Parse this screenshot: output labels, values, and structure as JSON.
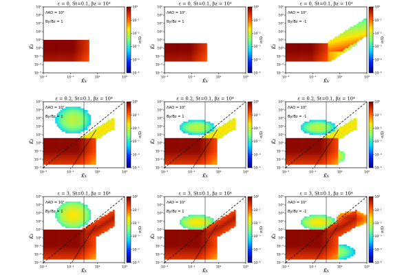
{
  "chart_data": {
    "type": "heatmap",
    "grid": "3x3",
    "xlabel": "K̃x",
    "ylabel": "K̃z",
    "colorbar_label": "σ/Ω",
    "x_ticks": [
      "10⁻³",
      "10⁻¹",
      "10¹",
      "10³"
    ],
    "y_ticks": [
      "10⁵",
      "10⁴",
      "10³",
      "10²",
      "10¹",
      "10⁰",
      "10⁻¹",
      "10⁻²",
      "10⁻³"
    ],
    "colorbar_ticks": [
      "10⁰",
      "10⁻¹",
      "10⁻²",
      "10⁻³",
      "10⁻⁴",
      "10⁻⁵"
    ],
    "xlim": [
      0.001,
      1000
    ],
    "ylim": [
      0.001,
      100000
    ],
    "clim": [
      1e-05,
      1
    ],
    "colormap": [
      "#00007f",
      "#0028ff",
      "#00d4ff",
      "#7dff7a",
      "#ffe600",
      "#ff4800",
      "#7f0000"
    ],
    "panels": [
      {
        "row": 0,
        "col": 0,
        "title": "ε = 0, St=0.1, βz = 10⁴",
        "ann1": "ΛAD = 10⁴",
        "ann2": "By/Bz = 1",
        "eps": 0,
        "lam": 4,
        "sgn": 1
      },
      {
        "row": 0,
        "col": 1,
        "title": "ε = 0, St=0.1, βz = 10⁴",
        "ann1": "ΛAD = 10²",
        "ann2": "By/Bz = 1",
        "eps": 0,
        "lam": 2,
        "sgn": 1
      },
      {
        "row": 0,
        "col": 2,
        "title": "ε = 0, St=0.1, βz = 10⁴",
        "ann1": "ΛAD = 10²",
        "ann2": "By/Bz = -1",
        "eps": 0,
        "lam": 2,
        "sgn": -1
      },
      {
        "row": 1,
        "col": 0,
        "title": "ε = 0.2, St=0.1, βz = 10⁴",
        "ann1": "ΛAD = 10⁴",
        "ann2": "By/Bz = 1",
        "eps": 0.2,
        "lam": 4,
        "sgn": 1
      },
      {
        "row": 1,
        "col": 1,
        "title": "ε = 0.2, St=0.1, βz = 10⁴",
        "ann1": "ΛAD = 10²",
        "ann2": "By/Bz = 1",
        "eps": 0.2,
        "lam": 2,
        "sgn": 1
      },
      {
        "row": 1,
        "col": 2,
        "title": "ε = 0.2, St=0.1, βz = 10⁴",
        "ann1": "ΛAD = 10²",
        "ann2": "By/Bz = -1",
        "eps": 0.2,
        "lam": 2,
        "sgn": -1
      },
      {
        "row": 2,
        "col": 0,
        "title": "ε = 3, St=0.1, βz = 10⁴",
        "ann1": "ΛAD = 10⁴",
        "ann2": "By/Bz = 1",
        "eps": 3,
        "lam": 4,
        "sgn": 1
      },
      {
        "row": 2,
        "col": 1,
        "title": "ε = 3, St=0.1, βz = 10⁴",
        "ann1": "ΛAD = 10²",
        "ann2": "By/Bz = 1",
        "eps": 3,
        "lam": 2,
        "sgn": 1
      },
      {
        "row": 2,
        "col": 2,
        "title": "ε = 3, St=0.1, βz = 10⁴",
        "ann1": "ΛAD = 10²",
        "ann2": "By/Bz = -1",
        "eps": 3,
        "lam": 2,
        "sgn": -1
      }
    ]
  }
}
